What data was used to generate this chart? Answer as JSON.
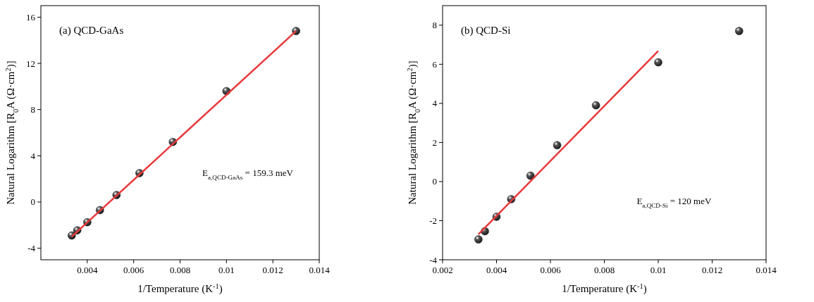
{
  "chart_data": [
    {
      "type": "scatter",
      "title": "(a) QCD-GaAs",
      "xlabel": "1/Temperature (K$^{-1}$)",
      "ylabel": "Natural Logarithm [R$_{0}$A (Ω·cm$^{2}$)]",
      "annotations": [
        "E$_{a,QCD-GaAs}$ = 159.3 meV"
      ],
      "xlim": [
        0.002,
        0.014
      ],
      "xticks": [
        0.004,
        0.006,
        0.008,
        0.01,
        0.012,
        0.014
      ],
      "ylim": [
        -5,
        17
      ],
      "yticks": [
        -4,
        0,
        4,
        8,
        12,
        16
      ],
      "grid": false,
      "marker": "circle",
      "series": [
        {
          "color": "#1a1a1a",
          "x": [
            0.00333,
            0.00357,
            0.004,
            0.004545,
            0.00526,
            0.00625,
            0.00769,
            0.01,
            0.013
          ],
          "values": [
            -2.9,
            -2.45,
            -1.75,
            -0.7,
            0.6,
            2.5,
            5.2,
            9.6,
            14.8
          ]
        },
        {
          "type": "line",
          "color": "#e8383a",
          "marker": "none",
          "x": [
            0.00333,
            0.013
          ],
          "values": [
            -3.0,
            14.8
          ]
        }
      ]
    },
    {
      "type": "scatter",
      "title": "(b) QCD-Si",
      "xlabel": "1/Temperature (K$^{-1}$)",
      "ylabel": "Natural Logarithm [R$_{0}$A (Ω·cm$^{2}$)]",
      "annotations": [
        "E$_{a,QCD-Si}$ = 120 meV"
      ],
      "xlim": [
        0.002,
        0.014
      ],
      "xticks": [
        0.002,
        0.004,
        0.006,
        0.008,
        0.01,
        0.012,
        0.014
      ],
      "ylim": [
        -4,
        9
      ],
      "yticks": [
        -4,
        -2,
        0,
        2,
        4,
        6,
        8
      ],
      "grid": false,
      "marker": "circle",
      "series": [
        {
          "color": "#1a1a1a",
          "x": [
            0.00333,
            0.00357,
            0.004,
            0.004545,
            0.00526,
            0.00625,
            0.00769,
            0.01,
            0.013
          ],
          "values": [
            -2.96,
            -2.54,
            -1.8,
            -0.9,
            0.3,
            1.86,
            3.9,
            6.1,
            7.7
          ]
        },
        {
          "type": "line",
          "color": "#e8383a",
          "marker": "none",
          "x": [
            0.00333,
            0.01
          ],
          "values": [
            -2.7,
            6.68
          ]
        }
      ]
    }
  ]
}
